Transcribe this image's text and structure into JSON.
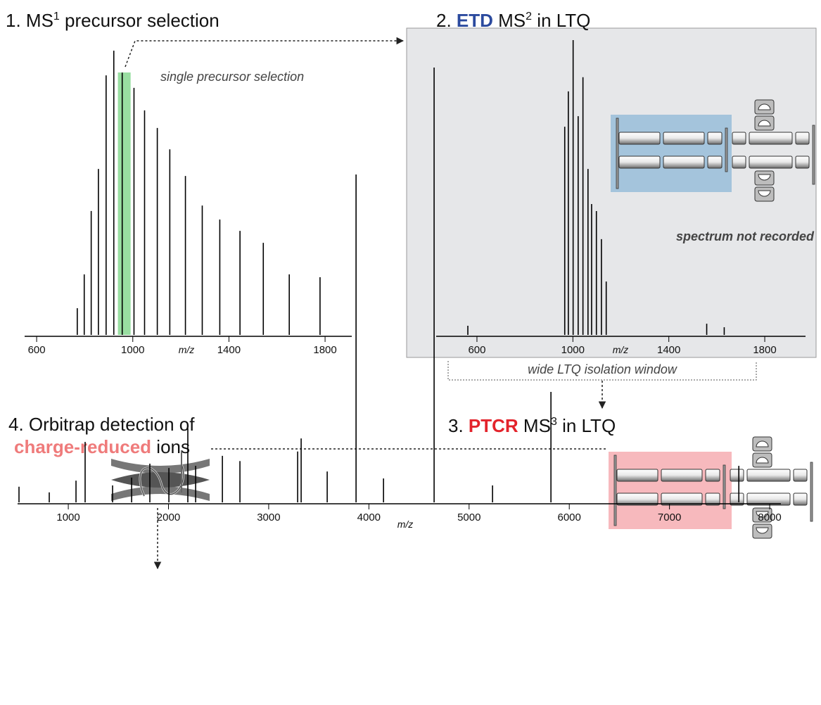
{
  "chart_data": [
    {
      "type": "stem",
      "title": [
        "1. MS",
        "1",
        " precursor selection"
      ],
      "xlabel": "m/z",
      "annotation": "single precursor selection",
      "x": [
        769,
        798,
        827,
        857,
        889,
        921,
        956,
        1005,
        1049,
        1102,
        1154,
        1219,
        1289,
        1362,
        1446,
        1543,
        1651,
        1779
      ],
      "values": [
        9.4,
        21.3,
        43.6,
        58.4,
        91.3,
        100,
        92.3,
        86.9,
        79,
        72.8,
        65.3,
        55.9,
        45.5,
        40.6,
        36.6,
        32.4,
        21.3,
        20.3
      ],
      "color": "#000000",
      "xlim": [
        550,
        1911
      ],
      "ylim": [
        0,
        100
      ],
      "xticks": [
        600,
        1000,
        1400,
        1800
      ],
      "highlight": {
        "xlim": [
          938,
          991
        ],
        "color": "#7fd68a"
      }
    },
    {
      "type": "stem",
      "title": [
        "2. ",
        "ETD",
        " MS",
        "2",
        " in LTQ"
      ],
      "xlabel": "m/z",
      "annotation": "spectrum not recorded",
      "x": [
        562,
        966,
        981,
        1001,
        1022,
        1042,
        1063,
        1078,
        1098,
        1119,
        1139,
        1558,
        1631
      ],
      "values": [
        3.1,
        70.6,
        82.6,
        100,
        74.2,
        87.4,
        56.3,
        44.4,
        42,
        32.5,
        18.1,
        3.8,
        2.6
      ],
      "color": "#000000",
      "xlim": [
        430,
        1970
      ],
      "ylim": [
        0,
        100
      ],
      "xticks": [
        600,
        1000,
        1400,
        1800
      ]
    },
    {
      "type": "stem",
      "title": [
        "4. Orbitrap detection of",
        "charge-reduced",
        " ions"
      ],
      "xlabel": "m/z",
      "x": [
        508,
        810,
        1077,
        1168,
        1442,
        1632,
        1814,
        2004,
        2193,
        2271,
        2538,
        2713,
        3289,
        3324,
        3584,
        3872,
        4146,
        4651,
        5234,
        5817,
        7692
      ],
      "values": [
        3.6,
        2.3,
        5.0,
        13.9,
        3.9,
        5.7,
        8.9,
        7.9,
        17.0,
        8.4,
        10.7,
        9.5,
        11.7,
        14.7,
        7.1,
        75.4,
        5.5,
        100,
        3.9,
        25.4,
        8.4
      ],
      "color": "#000000",
      "xlim": [
        494,
        8112
      ],
      "ylim": [
        0,
        100
      ],
      "xticks": [
        1000,
        2000,
        3000,
        4000,
        5000,
        6000,
        7000,
        8000
      ]
    }
  ],
  "steps": {
    "isolation_window": "wide LTQ isolation window",
    "ptcr": [
      "3. ",
      "PTCR",
      " MS",
      "3",
      " in LTQ"
    ]
  }
}
